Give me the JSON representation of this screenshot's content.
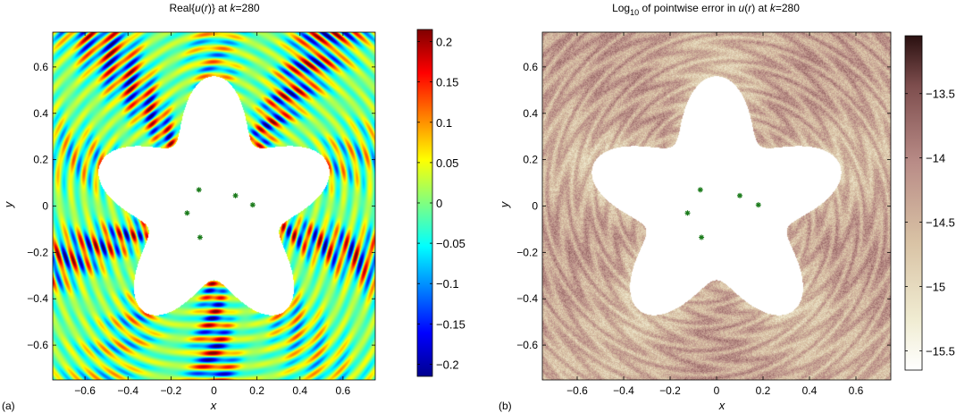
{
  "chart_data": [
    {
      "type": "heatmap",
      "panel_label": "(a)",
      "title_parts": [
        "Real{",
        "u",
        "(",
        "r",
        ")} at ",
        "k",
        "=280"
      ],
      "xlabel": "x",
      "ylabel": "y",
      "xlim": [
        -0.75,
        0.75
      ],
      "ylim": [
        -0.75,
        0.75
      ],
      "xticks": [
        -0.6,
        -0.4,
        -0.2,
        0,
        0.2,
        0.4,
        0.6
      ],
      "xtick_labels": [
        "−0.6",
        "−0.4",
        "−0.2",
        "0",
        "0.2",
        "0.4",
        "0.6"
      ],
      "yticks": [
        0.6,
        0.4,
        0.2,
        0,
        -0.2,
        -0.4,
        -0.6
      ],
      "ytick_labels": [
        "0.6",
        "0.4",
        "0.2",
        "0",
        "−0.2",
        "−0.4",
        "−0.6"
      ],
      "colormap": "jet",
      "colorbar": {
        "range": [
          -0.215,
          0.215
        ],
        "ticks": [
          0.2,
          0.15,
          0.1,
          0.05,
          0,
          -0.05,
          -0.1,
          -0.15,
          -0.2
        ],
        "tick_labels": [
          "0.2",
          "0.15",
          "0.1",
          "0.05",
          "0",
          "−0.05",
          "−0.1",
          "−0.15",
          "−0.2"
        ]
      },
      "obstacle": {
        "shape": "five-pointed star",
        "r0": 0.44,
        "amplitude": 0.12,
        "lobes": 5,
        "phase_deg": 90
      },
      "source_points": [
        [
          -0.07,
          0.07
        ],
        [
          0.1,
          0.045
        ],
        [
          0.18,
          0.005
        ],
        [
          -0.125,
          -0.03
        ],
        [
          -0.065,
          -0.135
        ]
      ],
      "marker_color": "#1a7a1a"
    },
    {
      "type": "heatmap",
      "panel_label": "(b)",
      "title_parts": [
        "Log",
        "10",
        " of pointwise error in ",
        "u",
        "(",
        "r",
        ") at ",
        "k",
        "=280"
      ],
      "xlabel": "x",
      "ylabel": "y",
      "xlim": [
        -0.75,
        0.75
      ],
      "ylim": [
        -0.75,
        0.75
      ],
      "xticks": [
        -0.6,
        -0.4,
        -0.2,
        0,
        0.2,
        0.4,
        0.6
      ],
      "xtick_labels": [
        "−0.6",
        "−0.4",
        "−0.2",
        "0",
        "0.2",
        "0.4",
        "0.6"
      ],
      "yticks": [
        0.6,
        0.4,
        0.2,
        0,
        -0.2,
        -0.4,
        -0.6
      ],
      "ytick_labels": [
        "0.6",
        "0.4",
        "0.2",
        "0",
        "−0.2",
        "−0.4",
        "−0.6"
      ],
      "colormap": "pink-brown",
      "colorbar": {
        "range": [
          -15.65,
          -13.05
        ],
        "ticks": [
          -13.5,
          -14,
          -14.5,
          -15,
          -15.5
        ],
        "tick_labels": [
          "−13.5",
          "−14",
          "−14.5",
          "−15",
          "−15.5"
        ]
      },
      "obstacle": {
        "shape": "five-pointed star",
        "r0": 0.44,
        "amplitude": 0.12,
        "lobes": 5,
        "phase_deg": 90
      },
      "source_points": [
        [
          -0.07,
          0.07
        ],
        [
          0.1,
          0.045
        ],
        [
          0.18,
          0.005
        ],
        [
          -0.125,
          -0.03
        ],
        [
          -0.065,
          -0.135
        ]
      ],
      "marker_color": "#1a7a1a"
    }
  ]
}
